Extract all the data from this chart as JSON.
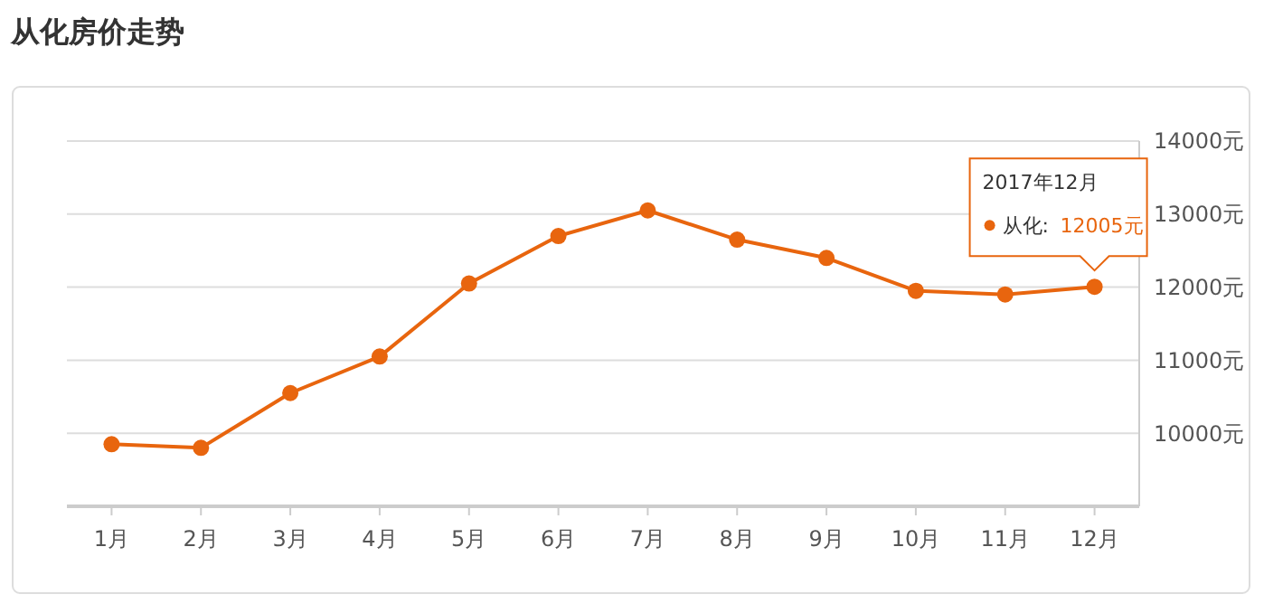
{
  "chart_data": {
    "type": "line",
    "title": "从化房价走势",
    "categories": [
      "1月",
      "2月",
      "3月",
      "4月",
      "5月",
      "6月",
      "7月",
      "8月",
      "9月",
      "10月",
      "11月",
      "12月"
    ],
    "series": [
      {
        "name": "从化:",
        "color": "#e8650e",
        "values": [
          9850,
          9800,
          10550,
          11050,
          12050,
          12700,
          13050,
          12650,
          12400,
          11950,
          11900,
          12005
        ],
        "value_labels": [
          null,
          null,
          null,
          null,
          null,
          null,
          null,
          null,
          null,
          null,
          null,
          "12005元"
        ]
      }
    ],
    "ylim": [
      9000,
      14000
    ],
    "yticks": [
      {
        "value": 10000,
        "label": "10000元"
      },
      {
        "value": 11000,
        "label": "11000元"
      },
      {
        "value": 12000,
        "label": "12000元"
      },
      {
        "value": 13000,
        "label": "13000元"
      },
      {
        "value": 14000,
        "label": "14000元"
      }
    ],
    "annotations": [
      "2017年12月"
    ],
    "grid": "y",
    "marker": "circle",
    "line_style": "solid"
  }
}
